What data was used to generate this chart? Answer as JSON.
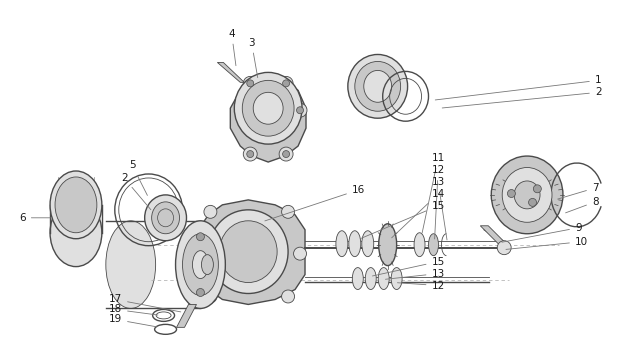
{
  "background_color": "#ffffff",
  "line_color": "#4a4a4a",
  "label_color": "#1a1a1a",
  "figsize": [
    6.18,
    3.4
  ],
  "dpi": 100,
  "light_gray": "#e0e0e0",
  "mid_gray": "#c8c8c8",
  "dark_gray": "#a0a0a0"
}
